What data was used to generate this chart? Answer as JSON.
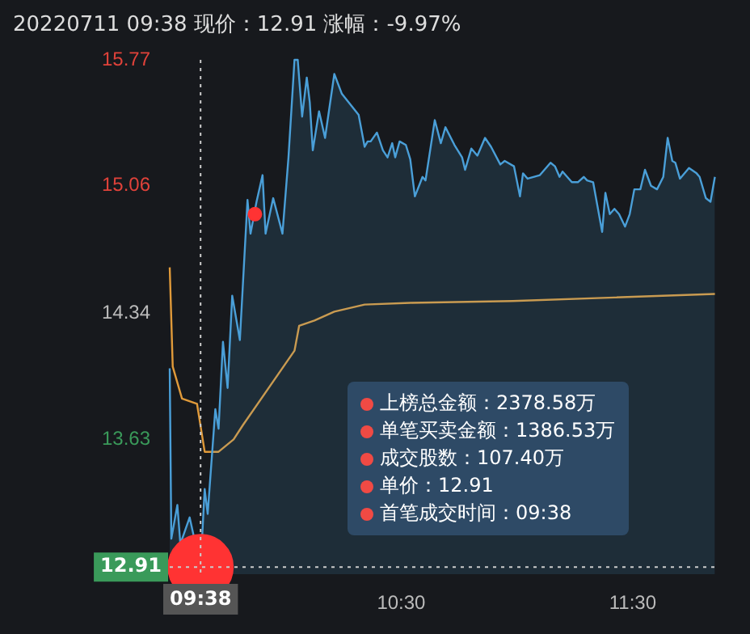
{
  "chart_data": {
    "type": "line",
    "title": "20220711 09:38 现价：12.91 涨幅：-9.97%",
    "xlim": [
      9.5,
      11.86
    ],
    "xticks": [
      {
        "value": 9.633333,
        "label": "09:38"
      },
      {
        "value": 10.5,
        "label": "10:30"
      },
      {
        "value": 11.5,
        "label": "11:30"
      }
    ],
    "ylim": [
      12.87,
      15.77
    ],
    "yticks": [
      13.63,
      14.34,
      15.06,
      15.77
    ],
    "grid": false,
    "legend": false,
    "series": [
      {
        "type": "area",
        "color": "#4a9fd8",
        "x": [
          9.5,
          9.507,
          9.533,
          9.546,
          9.586,
          9.633333,
          9.651,
          9.664,
          9.697,
          9.711,
          9.73,
          9.75,
          9.77,
          9.803,
          9.836,
          9.849,
          9.875,
          9.901,
          9.914,
          9.947,
          9.987,
          10.013,
          10.039,
          10.053,
          10.072,
          10.092,
          10.105,
          10.118,
          10.145,
          10.171,
          10.211,
          10.243,
          10.316,
          10.342,
          10.355,
          10.368,
          10.395,
          10.421,
          10.441,
          10.461,
          10.474,
          10.493,
          10.52,
          10.539,
          10.559,
          10.592,
          10.605,
          10.645,
          10.671,
          10.691,
          10.73,
          10.763,
          10.776,
          10.803,
          10.829,
          10.862,
          10.888,
          10.928,
          10.947,
          10.987,
          11.013,
          11.026,
          11.046,
          11.099,
          11.145,
          11.164,
          11.184,
          11.197,
          11.237,
          11.263,
          11.289,
          11.303,
          11.329,
          11.368,
          11.382,
          11.401,
          11.421,
          11.441,
          11.467,
          11.487,
          11.507,
          11.533,
          11.553,
          11.579,
          11.605,
          11.632,
          11.651,
          11.671,
          11.684,
          11.704,
          11.743,
          11.776,
          11.789,
          11.816,
          11.836,
          11.855
        ],
        "values": [
          14.03,
          13.07,
          13.26,
          13.04,
          13.19,
          12.91,
          13.35,
          13.21,
          13.8,
          13.69,
          14.18,
          13.92,
          14.44,
          14.19,
          14.98,
          14.79,
          14.97,
          15.12,
          14.79,
          14.99,
          14.79,
          15.22,
          15.77,
          15.77,
          15.45,
          15.67,
          15.53,
          15.26,
          15.48,
          15.33,
          15.69,
          15.58,
          15.46,
          15.28,
          15.31,
          15.31,
          15.36,
          15.26,
          15.22,
          15.3,
          15.22,
          15.31,
          15.29,
          15.21,
          15.0,
          15.11,
          15.09,
          15.43,
          15.3,
          15.39,
          15.29,
          15.22,
          15.15,
          15.27,
          15.23,
          15.33,
          15.28,
          15.18,
          15.2,
          15.17,
          15.0,
          15.13,
          15.1,
          15.12,
          15.19,
          15.17,
          15.11,
          15.14,
          15.08,
          15.08,
          15.11,
          15.09,
          15.08,
          14.8,
          15.02,
          14.9,
          14.93,
          14.9,
          14.83,
          14.9,
          15.04,
          15.04,
          15.15,
          15.06,
          15.04,
          15.11,
          15.33,
          15.2,
          15.19,
          15.1,
          15.16,
          15.13,
          15.11,
          14.99,
          14.97,
          15.11
        ]
      },
      {
        "color": "#e09a3a",
        "x": [
          9.5,
          9.513,
          9.553,
          9.618,
          9.651,
          9.711,
          9.776,
          9.816,
          10.039,
          10.059,
          10.125,
          10.211,
          10.342,
          10.539,
          10.98,
          11.421,
          11.855
        ],
        "values": [
          14.6,
          14.04,
          13.86,
          13.83,
          13.56,
          13.56,
          13.63,
          13.71,
          14.13,
          14.27,
          14.3,
          14.35,
          14.39,
          14.4,
          14.41,
          14.43,
          14.45
        ]
      },
      {
        "type": "scatter",
        "color": "#ff3333",
        "marker": "circle",
        "x": [
          9.868
        ],
        "values": [
          14.9
        ]
      },
      {
        "type": "scatter",
        "color": "#ff3333",
        "marker": "circle",
        "x": [
          9.633333
        ],
        "values": [
          12.91
        ]
      }
    ],
    "ref_lines": [
      {
        "axis": "x",
        "value": 9.633333,
        "color": "#cccccc",
        "line_style": "dotted"
      },
      {
        "axis": "y",
        "value": 12.91,
        "label": "12.91",
        "color": "#cccccc",
        "line_style": "dotted"
      }
    ],
    "annotations": [
      "上榜总金额：2378.58万",
      "单笔买卖金额：1386.53万",
      "成交股数：107.40万",
      "单价：12.91",
      "首笔成交时间：09:38"
    ]
  }
}
